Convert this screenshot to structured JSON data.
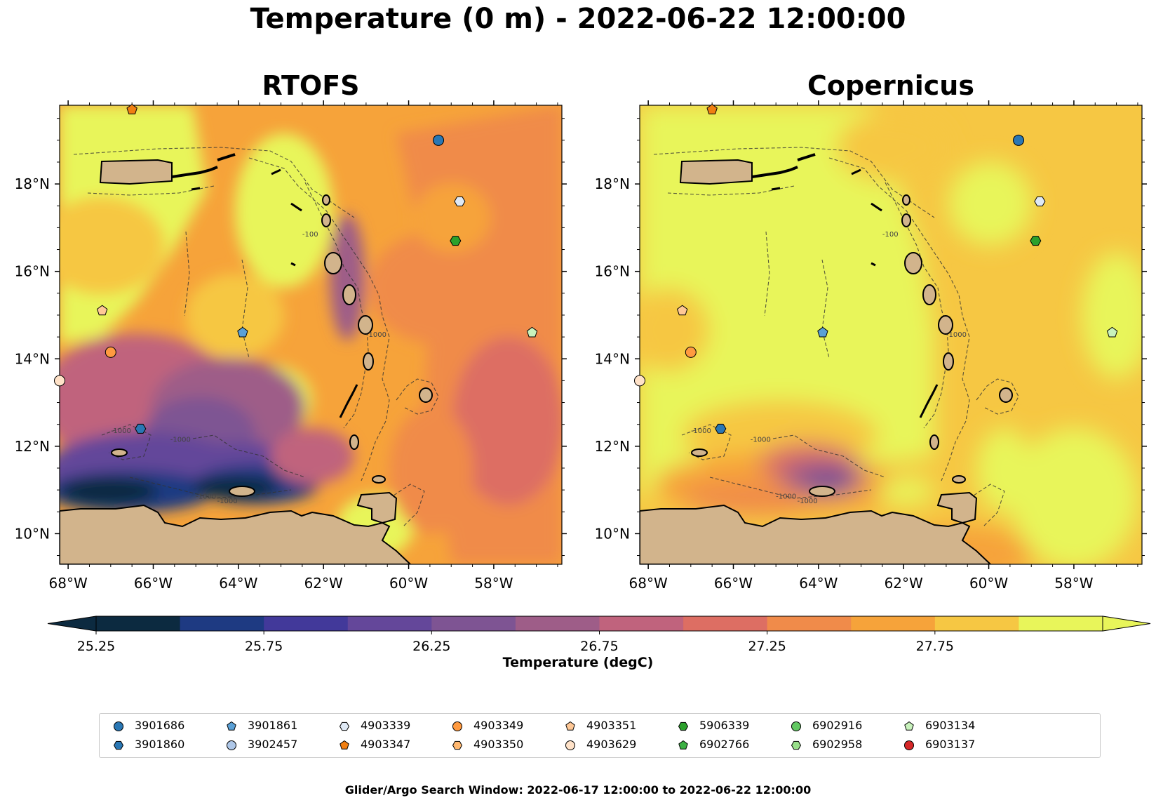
{
  "title": "Temperature (0 m) - 2022-06-22 12:00:00",
  "panels": [
    {
      "title": "RTOFS"
    },
    {
      "title": "Copernicus"
    }
  ],
  "axes": {
    "lon_ticks": [
      "68°W",
      "66°W",
      "64°W",
      "62°W",
      "60°W",
      "58°W"
    ],
    "lat_ticks": [
      "18°N",
      "16°N",
      "14°N",
      "12°N",
      "10°N"
    ],
    "lon_range": [
      -68.2,
      -56.4
    ],
    "lat_range": [
      9.3,
      19.8
    ]
  },
  "colorbar": {
    "label": "Temperature (degC)",
    "tick_labels": [
      "25.25",
      "25.75",
      "26.25",
      "26.75",
      "27.25",
      "27.75"
    ],
    "range": [
      25.25,
      27.75
    ],
    "colors": [
      "#0c2a40",
      "#1e3a82",
      "#42399a",
      "#64479a",
      "#7e5493",
      "#9e5d88",
      "#c0637d",
      "#dd6e63",
      "#f08b4a",
      "#f6a33a",
      "#f6c743",
      "#e8f55a"
    ]
  },
  "contour_labels": [
    "-1000",
    "-1000",
    "-100",
    "-1000",
    "-1000",
    "-1000"
  ],
  "legend": {
    "items": [
      {
        "id": "3901686",
        "marker": "circle",
        "color": "#2a77b4"
      },
      {
        "id": "3901860",
        "marker": "hexagon",
        "color": "#2a77b4"
      },
      {
        "id": "3901861",
        "marker": "pentagon",
        "color": "#5aa0d6"
      },
      {
        "id": "3902457",
        "marker": "circle",
        "color": "#aec7e8"
      },
      {
        "id": "4903339",
        "marker": "hexagon",
        "color": "#dfe9f5"
      },
      {
        "id": "4903347",
        "marker": "pentagon",
        "color": "#f07f12"
      },
      {
        "id": "4903349",
        "marker": "circle",
        "color": "#ff9a40"
      },
      {
        "id": "4903350",
        "marker": "hexagon",
        "color": "#ffb870"
      },
      {
        "id": "4903351",
        "marker": "pentagon",
        "color": "#ffc896"
      },
      {
        "id": "4903629",
        "marker": "circle",
        "color": "#ffe2c8"
      },
      {
        "id": "5906339",
        "marker": "hexagon",
        "color": "#2ca02c"
      },
      {
        "id": "6902766",
        "marker": "pentagon",
        "color": "#3cb043"
      },
      {
        "id": "6902916",
        "marker": "circle",
        "color": "#62c862"
      },
      {
        "id": "6902958",
        "marker": "hexagon",
        "color": "#98df8a"
      },
      {
        "id": "6903134",
        "marker": "pentagon",
        "color": "#c8f2bc"
      },
      {
        "id": "6903137",
        "marker": "circle",
        "color": "#d62728"
      }
    ]
  },
  "floats_on_map": [
    {
      "id": "4903347",
      "lon": -66.5,
      "lat": 19.7
    },
    {
      "id": "3901686",
      "lon": -59.3,
      "lat": 19.0
    },
    {
      "id": "4903339",
      "lon": -58.8,
      "lat": 17.6
    },
    {
      "id": "5906339",
      "lon": -58.9,
      "lat": 16.7
    },
    {
      "id": "4903351",
      "lon": -67.2,
      "lat": 15.1
    },
    {
      "id": "3901861",
      "lon": -63.9,
      "lat": 14.6
    },
    {
      "id": "6903134",
      "lon": -57.1,
      "lat": 14.6
    },
    {
      "id": "4903349",
      "lon": -67.0,
      "lat": 14.15
    },
    {
      "id": "4903629",
      "lon": -68.2,
      "lat": 13.5
    },
    {
      "id": "3901860",
      "lon": -66.3,
      "lat": 12.4
    }
  ],
  "footer": "Glider/Argo Search Window: 2022-06-17 12:00:00 to 2022-06-22 12:00:00"
}
